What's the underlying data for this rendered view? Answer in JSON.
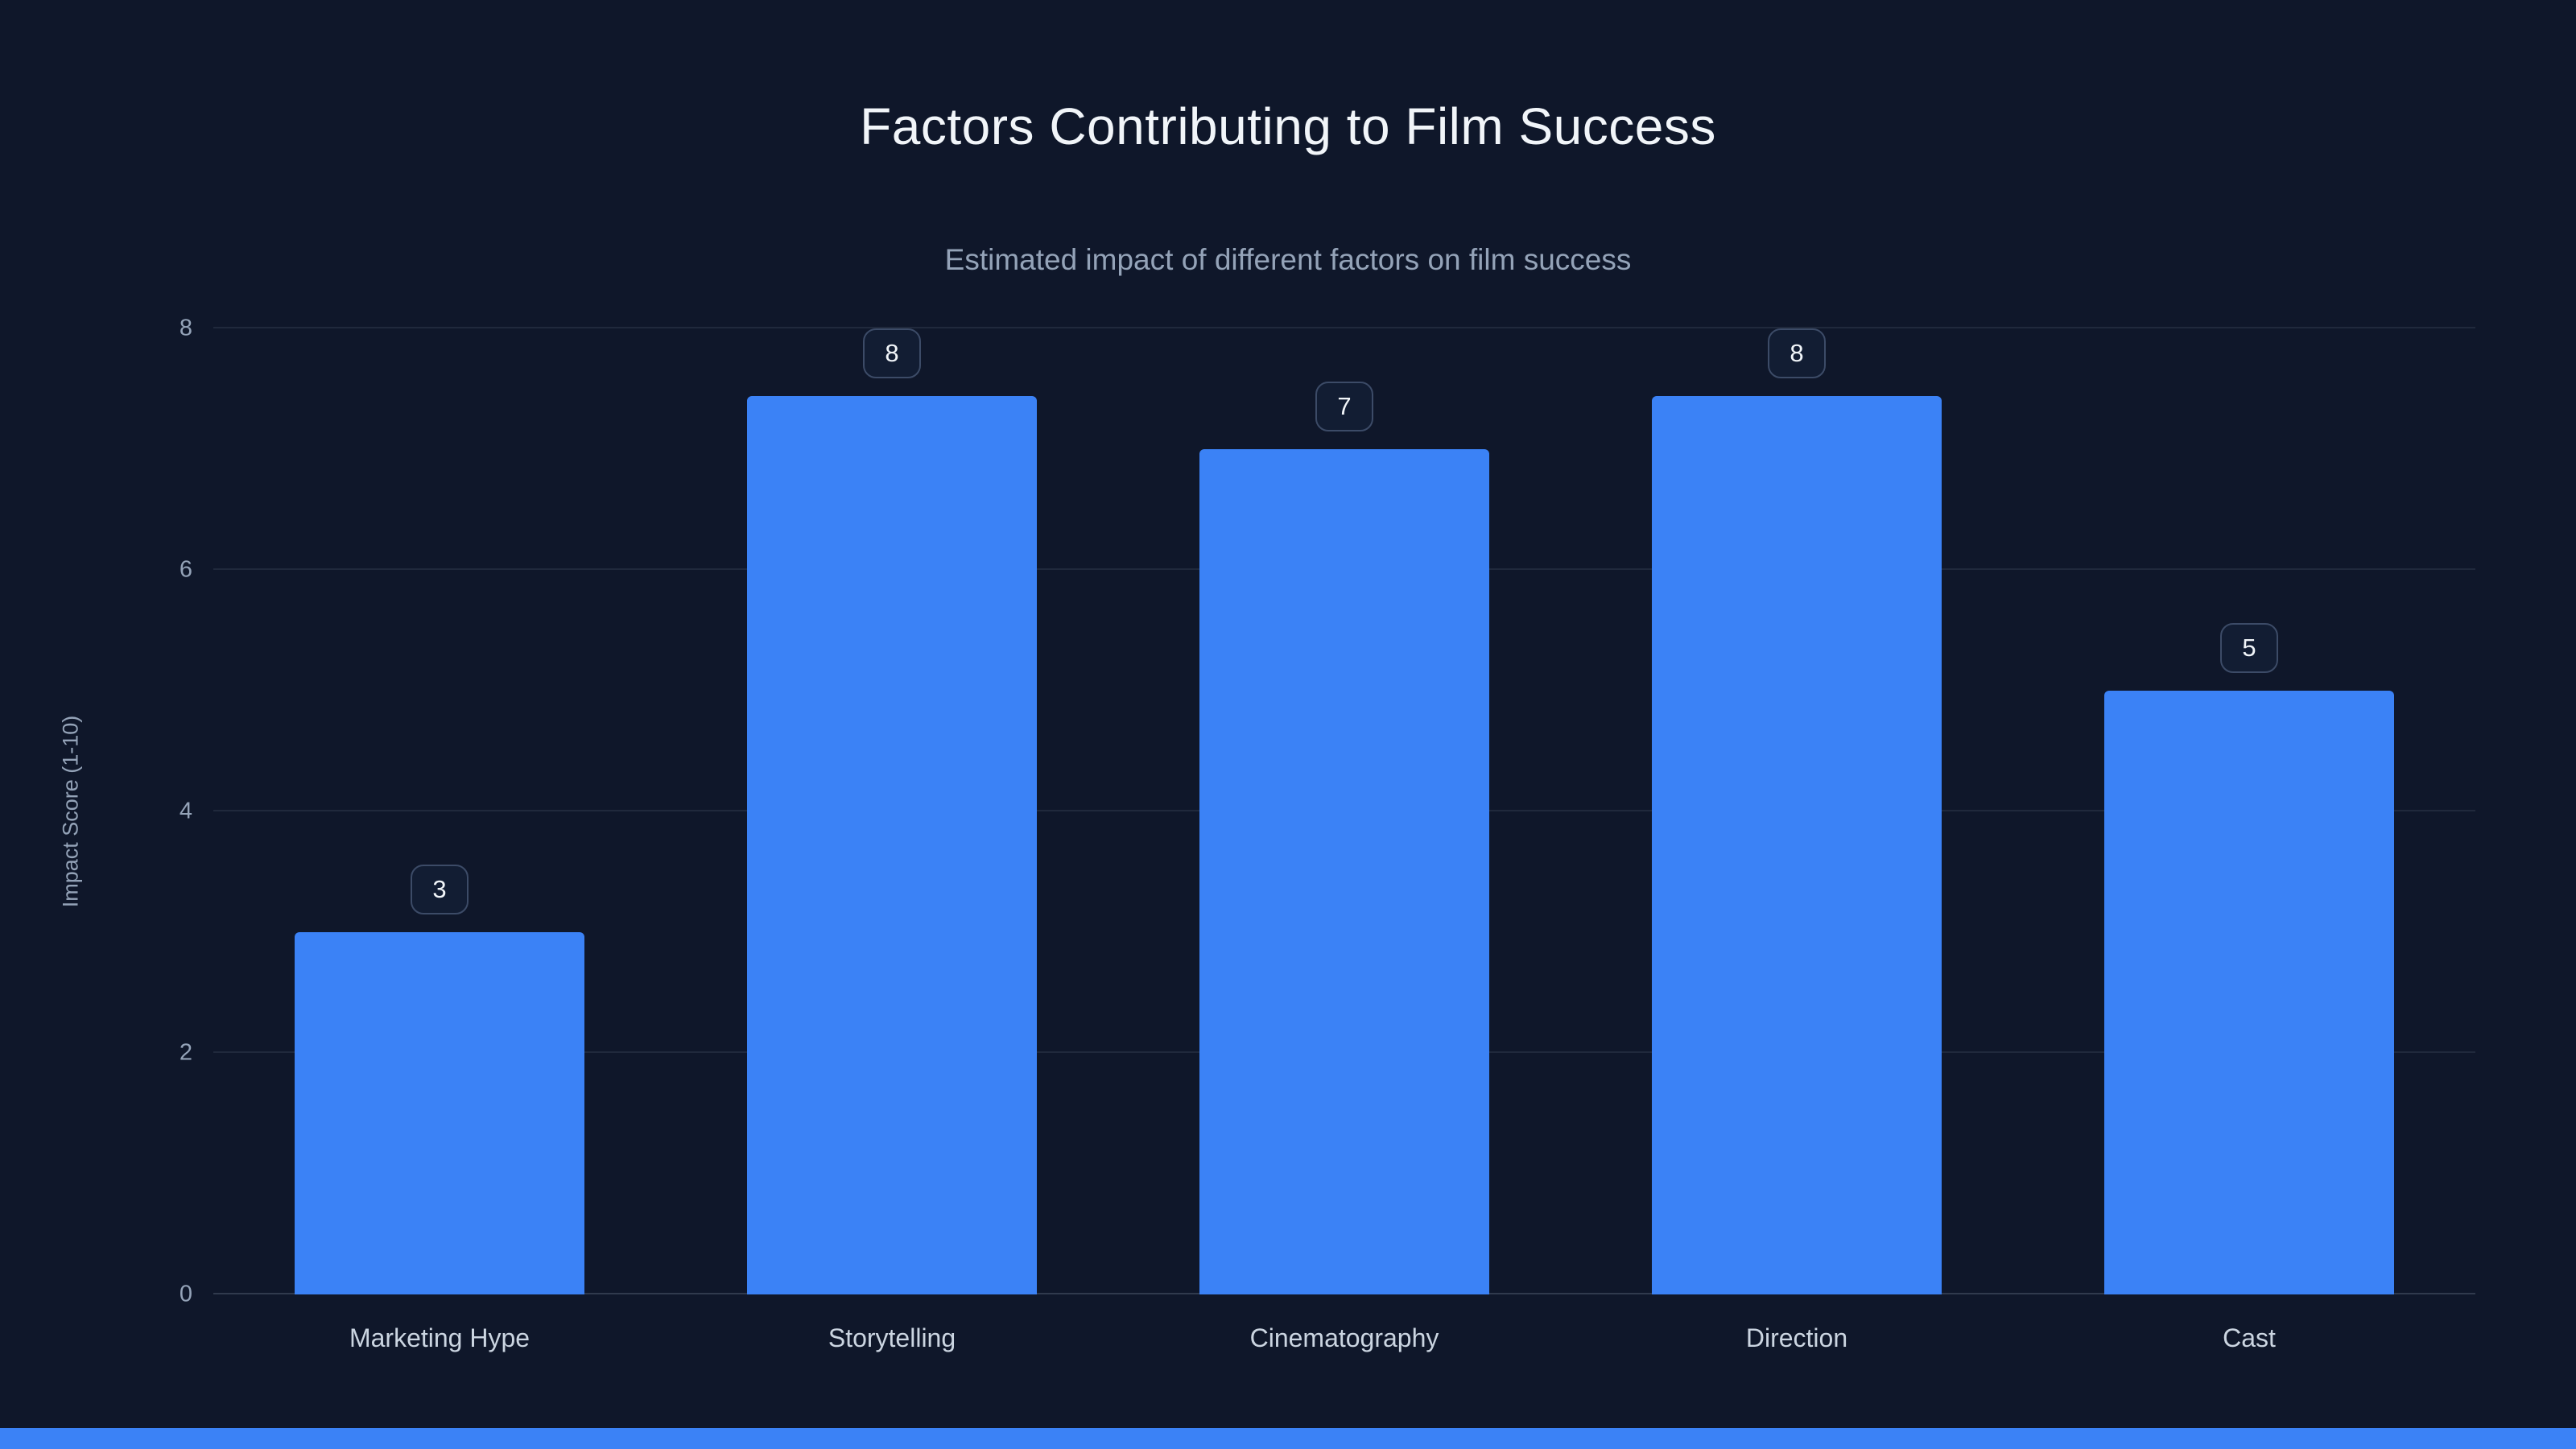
{
  "chart": {
    "title": "Factors Contributing to Film Success",
    "subtitle": "Estimated impact of different factors on film success",
    "ylabel": "Impact Score (1-10)"
  },
  "chart_data": {
    "type": "bar",
    "title": "Factors Contributing to Film Success",
    "subtitle": "Estimated impact of different factors on film success",
    "xlabel": "",
    "ylabel": "Impact Score (1-10)",
    "categories": [
      "Marketing Hype",
      "Storytelling",
      "Cinematography",
      "Direction",
      "Cast"
    ],
    "values": [
      3,
      8,
      7,
      8,
      5
    ],
    "ylim": [
      0,
      8
    ],
    "yticks": [
      0,
      2,
      4,
      6,
      8
    ],
    "grid": true,
    "legend": "none",
    "bar_color": "#3b82f6",
    "background_color": "#0f172a",
    "value_labels": "badges above bars"
  }
}
